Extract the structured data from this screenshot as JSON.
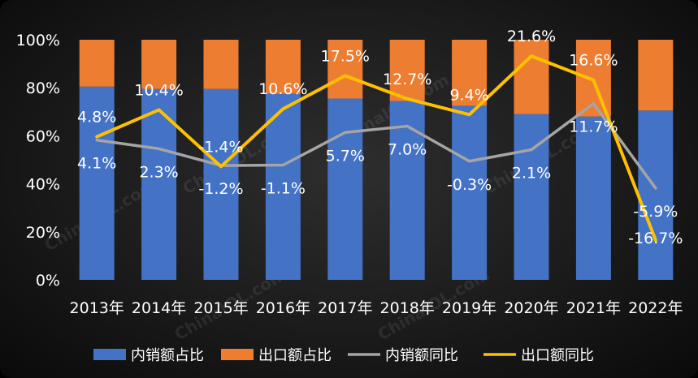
{
  "chart_data": {
    "type": "bar",
    "stacked": true,
    "title": "",
    "xlabel": "",
    "ylabel": "",
    "ylim": [
      0,
      100
    ],
    "y_ticks": [
      "0%",
      "20%",
      "40%",
      "60%",
      "80%",
      "100%"
    ],
    "categories": [
      "2013年",
      "2014年",
      "2015年",
      "2016年",
      "2017年",
      "2018年",
      "2019年",
      "2020年",
      "2021年",
      "2022年"
    ],
    "series": [
      {
        "name": "内销额占比",
        "kind": "bar",
        "color": "#4472c4",
        "values": [
          80.5,
          79.5,
          79.5,
          77.5,
          75.5,
          74.5,
          72.5,
          69,
          68,
          70.5
        ]
      },
      {
        "name": "出口额占比",
        "kind": "bar",
        "color": "#ed7d31",
        "values": [
          19.5,
          20.5,
          20.5,
          22.5,
          24.5,
          25.5,
          27.5,
          31,
          32,
          29.5
        ]
      },
      {
        "name": "内销额同比",
        "kind": "line",
        "color": "#a5a5a5",
        "values": [
          4.1,
          2.3,
          -1.2,
          -1.1,
          5.7,
          7.0,
          -0.3,
          2.1,
          11.7,
          -5.9
        ],
        "labels": [
          "4.1%",
          "2.3%",
          "-1.2%",
          "-1.1%",
          "5.7%",
          "7.0%",
          "-0.3%",
          "2.1%",
          "11.7%",
          "-5.9%"
        ]
      },
      {
        "name": "出口额同比",
        "kind": "line",
        "color": "#ffc000",
        "values": [
          4.8,
          10.4,
          -1.4,
          10.6,
          17.5,
          12.7,
          9.4,
          21.6,
          16.6,
          -16.7
        ],
        "labels": [
          "4.8%",
          "10.4%",
          "-1.4%",
          "10.6%",
          "17.5%",
          "12.7%",
          "9.4%",
          "21.6%",
          "16.6%",
          "-16.7%"
        ]
      }
    ],
    "legend": "bottom"
  }
}
